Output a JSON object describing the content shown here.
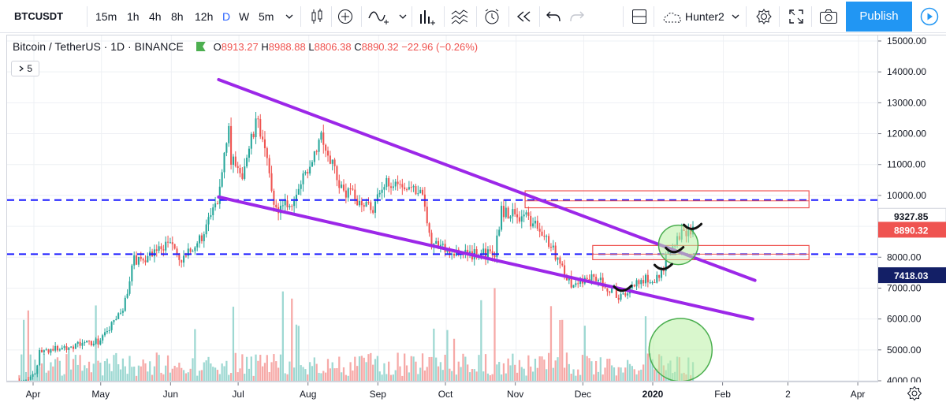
{
  "toolbar": {
    "symbol": "BTCUSDT",
    "intervals": [
      "15m",
      "1h",
      "4h",
      "8h",
      "12h",
      "D",
      "W",
      "5m"
    ],
    "active_interval": "D",
    "layout_name": "Hunter2",
    "publish_label": "Publish",
    "icons": [
      "chevron-down-icon",
      "candles-icon",
      "compare-icon",
      "indicators-icon",
      "financials-icon",
      "templates-icon",
      "alert-icon",
      "replay-icon",
      "undo-icon",
      "redo-icon",
      "layout-icon",
      "cloud-icon",
      "gear-icon",
      "fullscreen-icon",
      "camera-icon",
      "play-icon"
    ]
  },
  "legend": {
    "title": "Bitcoin / TetherUS · 1D · BINANCE",
    "o_label": "O",
    "o": "8913.27",
    "h_label": "H",
    "h": "8988.88",
    "l_label": "L",
    "l": "8806.38",
    "c_label": "C",
    "c": "8890.32",
    "change": "−22.96 (−0.26%)",
    "collapsed_count": "5"
  },
  "colors": {
    "up": "#26a69a",
    "down": "#ef5350",
    "trendline": "#9c27e8",
    "hline": "#1a1aff",
    "rect": "#ef5350",
    "circle_fill": "#b9f0a4",
    "circle_stroke": "#4caf50",
    "price_label_last": "#ef5350",
    "price_label_dark": "#131f66"
  },
  "chart_data": {
    "type": "candlestick",
    "title": "Bitcoin / TetherUS · 1D · BINANCE",
    "xlabel": "",
    "ylabel": "",
    "x_ticks": [
      "Apr",
      "May",
      "Jun",
      "Jul",
      "Aug",
      "Sep",
      "Oct",
      "Nov",
      "Dec",
      "2020",
      "Feb",
      "2",
      "Apr"
    ],
    "y_ticks": [
      "4000.00",
      "5000.00",
      "6000.00",
      "7000.00",
      "8000.00",
      "9000.00",
      "10000.00",
      "11000.00",
      "12000.00",
      "13000.00",
      "14000.00",
      "15000.00"
    ],
    "ylim": [
      4000,
      15000
    ],
    "price_labels": {
      "upper": "9327.85",
      "last": "8890.32",
      "lower": "7418.03"
    },
    "price_path": [
      [
        "2019-03-25",
        4000
      ],
      [
        "2019-04-01",
        4150
      ],
      [
        "2019-04-03",
        4950
      ],
      [
        "2019-04-15",
        5100
      ],
      [
        "2019-04-30",
        5300
      ],
      [
        "2019-05-10",
        6300
      ],
      [
        "2019-05-15",
        7900
      ],
      [
        "2019-05-20",
        8000
      ],
      [
        "2019-05-31",
        8500
      ],
      [
        "2019-06-05",
        7800
      ],
      [
        "2019-06-15",
        8800
      ],
      [
        "2019-06-21",
        9800
      ],
      [
        "2019-06-26",
        12500
      ],
      [
        "2019-06-27",
        11200
      ],
      [
        "2019-07-01",
        10500
      ],
      [
        "2019-07-09",
        12500
      ],
      [
        "2019-07-17",
        9500
      ],
      [
        "2019-07-25",
        9800
      ],
      [
        "2019-08-06",
        12000
      ],
      [
        "2019-08-15",
        10200
      ],
      [
        "2019-08-29",
        9600
      ],
      [
        "2019-09-05",
        10500
      ],
      [
        "2019-09-19",
        10200
      ],
      [
        "2019-09-24",
        8500
      ],
      [
        "2019-10-05",
        8100
      ],
      [
        "2019-10-22",
        8100
      ],
      [
        "2019-10-25",
        9500
      ],
      [
        "2019-11-05",
        9300
      ],
      [
        "2019-11-15",
        8500
      ],
      [
        "2019-11-25",
        7100
      ],
      [
        "2019-12-05",
        7400
      ],
      [
        "2019-12-17",
        6700
      ],
      [
        "2019-12-25",
        7250
      ],
      [
        "2020-01-03",
        7350
      ],
      [
        "2020-01-07",
        8100
      ],
      [
        "2020-01-14",
        8800
      ],
      [
        "2020-01-19",
        8900
      ]
    ],
    "volume_hint": "volume histogram at bottom of pane",
    "drawings": {
      "upper_trendline": [
        [
          "2019-06-22",
          13750
        ],
        [
          "2020-02-15",
          7250
        ]
      ],
      "lower_trendline": [
        [
          "2019-06-22",
          9950
        ],
        [
          "2020-02-14",
          6000
        ]
      ],
      "resistance_level": 9850,
      "support_level": 8100,
      "resistance_zone": [
        [
          "2019-11-05",
          9600
        ],
        [
          "2020-03-10",
          10150
        ]
      ],
      "support_zone": [
        [
          "2019-12-05",
          7920
        ],
        [
          "2020-03-10",
          8380
        ]
      ],
      "highlight_circle_price": [
        "2020-01-12",
        8400
      ],
      "highlight_circle_volume": [
        "2020-01-13",
        5000
      ]
    }
  }
}
